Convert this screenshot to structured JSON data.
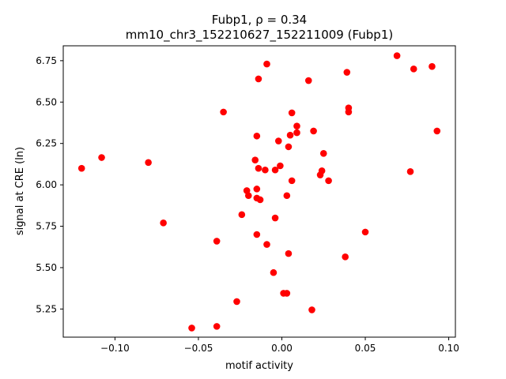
{
  "chart_data": {
    "type": "scatter",
    "title_line1": "Fubp1, ρ = 0.34",
    "title_line2": "mm10_chr3_152210627_152211009 (Fubp1)",
    "xlabel": "motif activity",
    "ylabel": "signal at CRE (ln)",
    "xlim": [
      -0.131,
      0.104
    ],
    "ylim": [
      5.08,
      6.84
    ],
    "xticks": [
      -0.1,
      -0.05,
      0.0,
      0.05,
      0.1
    ],
    "xtick_labels": [
      "−0.10",
      "−0.05",
      "0.00",
      "0.05",
      "0.10"
    ],
    "yticks": [
      5.25,
      5.5,
      5.75,
      6.0,
      6.25,
      6.5,
      6.75
    ],
    "ytick_labels": [
      "5.25",
      "5.50",
      "5.75",
      "6.00",
      "6.25",
      "6.50",
      "6.75"
    ],
    "grid": false,
    "marker_color": "#ff0000",
    "points": [
      {
        "x": -0.12,
        "y": 6.1
      },
      {
        "x": -0.108,
        "y": 6.165
      },
      {
        "x": -0.08,
        "y": 6.135
      },
      {
        "x": -0.071,
        "y": 5.77
      },
      {
        "x": -0.054,
        "y": 5.135
      },
      {
        "x": -0.039,
        "y": 5.145
      },
      {
        "x": -0.039,
        "y": 5.66
      },
      {
        "x": -0.035,
        "y": 6.44
      },
      {
        "x": -0.027,
        "y": 5.295
      },
      {
        "x": -0.024,
        "y": 5.82
      },
      {
        "x": -0.021,
        "y": 5.965
      },
      {
        "x": -0.02,
        "y": 5.935
      },
      {
        "x": -0.016,
        "y": 6.15
      },
      {
        "x": -0.015,
        "y": 5.92
      },
      {
        "x": -0.015,
        "y": 5.975
      },
      {
        "x": -0.015,
        "y": 6.295
      },
      {
        "x": -0.015,
        "y": 5.7
      },
      {
        "x": -0.014,
        "y": 6.1
      },
      {
        "x": -0.014,
        "y": 6.64
      },
      {
        "x": -0.013,
        "y": 5.91
      },
      {
        "x": -0.01,
        "y": 6.09
      },
      {
        "x": -0.009,
        "y": 5.64
      },
      {
        "x": -0.009,
        "y": 6.73
      },
      {
        "x": -0.005,
        "y": 5.47
      },
      {
        "x": -0.004,
        "y": 5.8
      },
      {
        "x": -0.004,
        "y": 6.09
      },
      {
        "x": -0.002,
        "y": 6.265
      },
      {
        "x": -0.001,
        "y": 6.115
      },
      {
        "x": 0.001,
        "y": 5.345
      },
      {
        "x": 0.003,
        "y": 5.345
      },
      {
        "x": 0.003,
        "y": 5.935
      },
      {
        "x": 0.004,
        "y": 5.585
      },
      {
        "x": 0.004,
        "y": 6.23
      },
      {
        "x": 0.005,
        "y": 6.3
      },
      {
        "x": 0.006,
        "y": 6.435
      },
      {
        "x": 0.006,
        "y": 6.025
      },
      {
        "x": 0.009,
        "y": 6.355
      },
      {
        "x": 0.009,
        "y": 6.315
      },
      {
        "x": 0.016,
        "y": 6.63
      },
      {
        "x": 0.018,
        "y": 5.245
      },
      {
        "x": 0.019,
        "y": 6.325
      },
      {
        "x": 0.023,
        "y": 6.06
      },
      {
        "x": 0.024,
        "y": 6.085
      },
      {
        "x": 0.025,
        "y": 6.19
      },
      {
        "x": 0.028,
        "y": 6.025
      },
      {
        "x": 0.038,
        "y": 5.565
      },
      {
        "x": 0.039,
        "y": 6.68
      },
      {
        "x": 0.04,
        "y": 6.465
      },
      {
        "x": 0.04,
        "y": 6.44
      },
      {
        "x": 0.05,
        "y": 5.715
      },
      {
        "x": 0.069,
        "y": 6.78
      },
      {
        "x": 0.077,
        "y": 6.08
      },
      {
        "x": 0.079,
        "y": 6.7
      },
      {
        "x": 0.09,
        "y": 6.715
      },
      {
        "x": 0.093,
        "y": 6.325
      }
    ]
  }
}
